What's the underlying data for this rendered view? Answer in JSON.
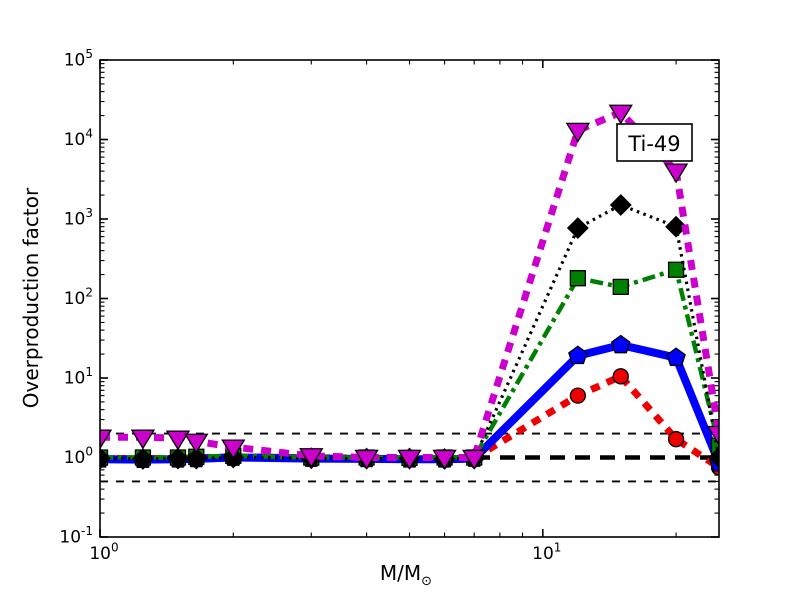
{
  "figure": {
    "background": "#ffffff"
  },
  "chart_data": {
    "type": "line",
    "title": "",
    "annotation": "Ti-49",
    "xlabel_main": "M/M",
    "xlabel_sub": "⊙",
    "ylabel": "Overproduction factor",
    "xscale": "log",
    "yscale": "log",
    "xlim": [
      1,
      25
    ],
    "ylim": [
      0.1,
      100000
    ],
    "grid": false,
    "legend": "none",
    "x_tick_exponents": [
      0,
      1
    ],
    "y_tick_exponents": [
      -1,
      0,
      1,
      2,
      3,
      4,
      5
    ],
    "x": [
      1,
      1.25,
      1.5,
      1.65,
      2,
      3,
      4,
      5,
      6,
      7,
      12,
      15,
      20,
      25
    ],
    "series": [
      {
        "id": "red-dashed-circles",
        "color": "#ee0000",
        "marker": "circle",
        "line": "dashed",
        "values": [
          0.98,
          0.97,
          0.98,
          0.99,
          1.02,
          0.99,
          0.98,
          0.97,
          0.97,
          0.98,
          6,
          10.5,
          1.7,
          0.75
        ]
      },
      {
        "id": "blue-solid-pentagons",
        "color": "#0000ff",
        "marker": "pentagon",
        "line": "solid",
        "values": [
          0.95,
          0.94,
          0.95,
          0.96,
          1.0,
          0.97,
          0.96,
          0.95,
          0.95,
          0.97,
          19,
          26,
          18,
          0.85
        ]
      },
      {
        "id": "green-dashdot-squares",
        "color": "#008000",
        "marker": "square",
        "line": "dashdot",
        "values": [
          1.0,
          1.0,
          1.0,
          1.02,
          1.05,
          1.0,
          1.0,
          0.99,
          1.0,
          1.0,
          180,
          140,
          230,
          1.4
        ]
      },
      {
        "id": "black-dotted-diamonds",
        "color": "#000000",
        "marker": "diamond",
        "line": "dotted",
        "values": [
          0.97,
          0.96,
          0.97,
          0.97,
          1.0,
          0.98,
          0.97,
          0.97,
          0.96,
          0.97,
          770,
          1500,
          800,
          1.0
        ]
      },
      {
        "id": "magenta-dashed-triangles",
        "color": "#cc00cc",
        "marker": "triangle-down",
        "line": "dashed-long",
        "values": [
          1.8,
          1.8,
          1.75,
          1.6,
          1.35,
          1.05,
          1.0,
          1.0,
          1.0,
          1.0,
          13000,
          22000,
          4000,
          2.0
        ]
      }
    ],
    "hlines": [
      {
        "y": 2,
        "style": "thin-dashed",
        "color": "#000000"
      },
      {
        "y": 1,
        "style": "thick-dashed",
        "color": "#000000"
      },
      {
        "y": 0.5,
        "style": "thin-dashed",
        "color": "#000000"
      }
    ]
  }
}
